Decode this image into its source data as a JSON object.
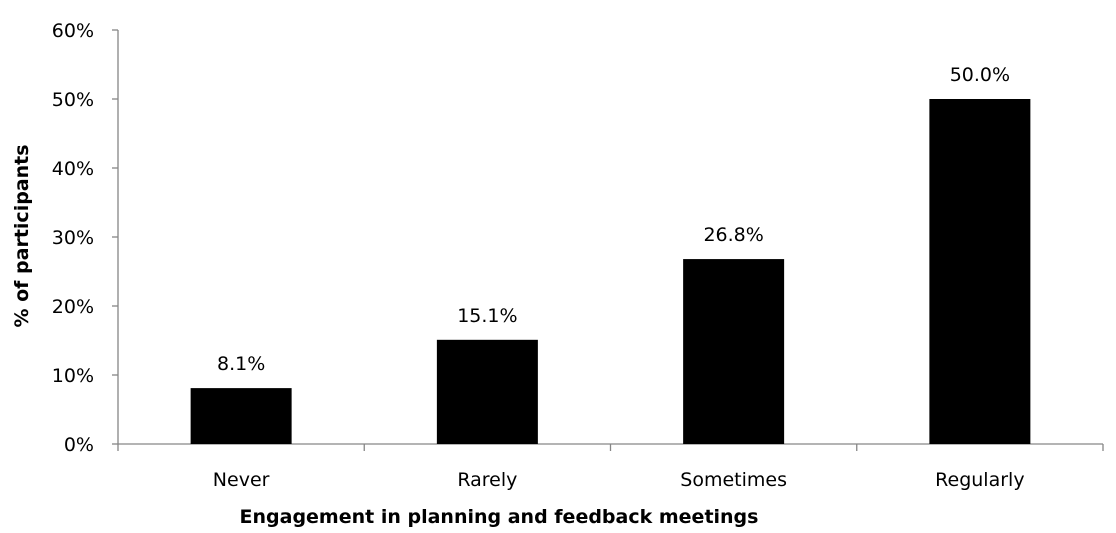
{
  "chart_data": {
    "type": "bar",
    "categories": [
      "Never",
      "Rarely",
      "Sometimes",
      "Regularly"
    ],
    "values": [
      8.1,
      15.1,
      26.8,
      50.0
    ],
    "data_labels": [
      "8.1%",
      "15.1%",
      "26.8%",
      "50.0%"
    ],
    "title": "",
    "xlabel": "Engagement in planning and feedback meetings",
    "ylabel": "% of participants",
    "ylim": [
      0,
      60
    ],
    "yticks": [
      0,
      10,
      20,
      30,
      40,
      50,
      60
    ],
    "ytick_labels": [
      "0%",
      "10%",
      "20%",
      "30%",
      "40%",
      "50%",
      "60%"
    ],
    "grid": false,
    "legend": "none",
    "bar_color": "#000000"
  }
}
